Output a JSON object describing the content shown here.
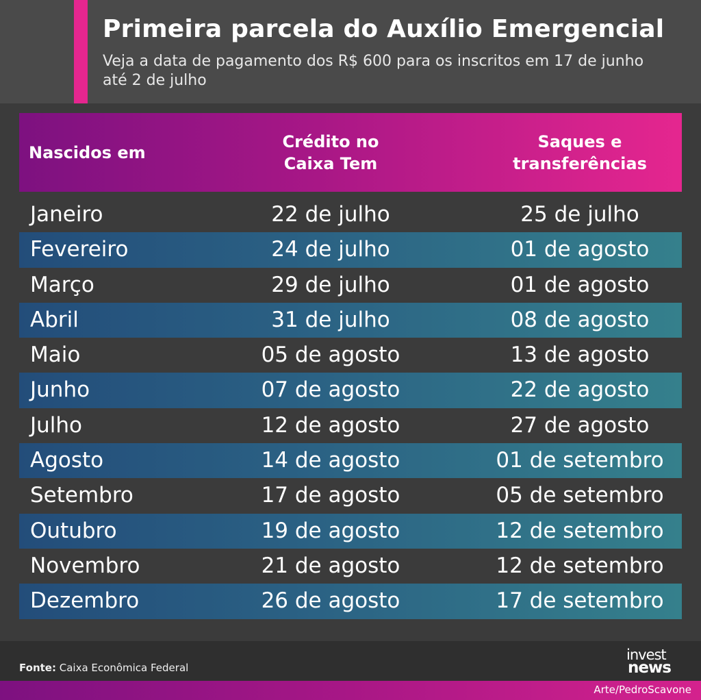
{
  "header": {
    "title": "Primeira parcela do Auxílio Emergencial",
    "subtitle": "Veja a data de pagamento dos R$ 600 para os inscritos em 17 de junho até 2 de julho"
  },
  "table": {
    "headers": [
      "Nascidos em",
      "Crédito no Caixa Tem",
      "Saques e transferências"
    ],
    "rows": [
      [
        "Janeiro",
        "22 de julho",
        "25 de julho"
      ],
      [
        "Fevereiro",
        "24 de julho",
        "01 de agosto"
      ],
      [
        "Março",
        "29 de julho",
        "01 de agosto"
      ],
      [
        "Abril",
        "31 de julho",
        "08 de agosto"
      ],
      [
        "Maio",
        "05 de agosto",
        "13 de agosto"
      ],
      [
        "Junho",
        "07 de agosto",
        "22 de agosto"
      ],
      [
        "Julho",
        "12 de agosto",
        "27 de agosto"
      ],
      [
        "Agosto",
        "14 de agosto",
        "01 de setembro"
      ],
      [
        "Setembro",
        "17 de agosto",
        "05 de setembro"
      ],
      [
        "Outubro",
        "19 de agosto",
        "12 de setembro"
      ],
      [
        "Novembro",
        "21 de agosto",
        "12 de setembro"
      ],
      [
        "Dezembro",
        "26 de agosto",
        "17 de setembro"
      ]
    ]
  },
  "footer": {
    "source_label": "Fonte:",
    "source_text": "Caixa Econômica Federal",
    "logo_top": "invest",
    "logo_bottom": "news",
    "credit": "Arte/PedroScavone"
  },
  "colors": {
    "accent": "#e5268f",
    "header_gradient_start": "#7d1180",
    "row_stripe": "#2b6284",
    "background": "#3b3b3b"
  }
}
